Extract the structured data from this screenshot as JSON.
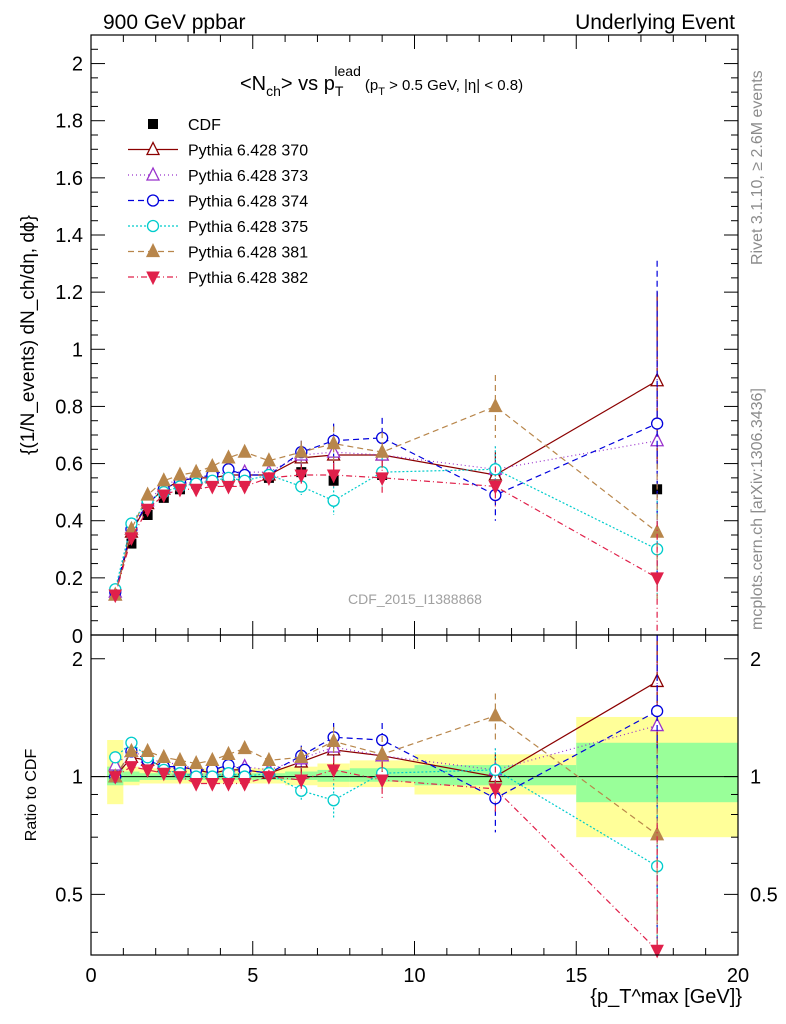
{
  "header": {
    "left": "900 GeV ppbar",
    "right": "Underlying Event",
    "plot_title_main": "<N",
    "plot_title_sub": "ch",
    "plot_title_vs": "> vs p",
    "plot_title_T": "T",
    "plot_title_lead": "lead",
    "plot_title_cut": "(p",
    "plot_title_cut_T": "T",
    "plot_title_cut_rest": " > 0.5 GeV, |η| < 0.8)"
  },
  "side_labels": {
    "rivet": "Rivet 3.1.10, ≥ 2.6M events",
    "mcplots": "mcplots.cern.ch [arXiv:1306.3436]"
  },
  "watermark": "CDF_2015_I1388868",
  "ylabel_main": "{(1/N_events) dN_ch/dη, dϕ}",
  "ylabel_ratio": "Ratio to CDF",
  "xlabel": "{p_T^max [GeV]}",
  "chart_data": [
    {
      "type": "line",
      "panel": "main",
      "xlim": [
        0,
        20
      ],
      "ylim": [
        0,
        2.1
      ],
      "xticks": [
        0,
        5,
        10,
        15,
        20
      ],
      "yticks": [
        0.2,
        0.4,
        0.6,
        0.8,
        1,
        1.2,
        1.4,
        1.6,
        1.8,
        2
      ],
      "ytick_labels": [
        "0.2",
        "0.4",
        "0.6",
        "0.8",
        "1",
        "1.2",
        "1.4",
        "1.6",
        "1.8",
        "2"
      ],
      "legend_position": "top-left",
      "x": [
        0.75,
        1.25,
        1.75,
        2.25,
        2.75,
        3.25,
        3.75,
        4.25,
        4.75,
        5.5,
        6.5,
        7.5,
        9.0,
        12.5,
        17.5
      ],
      "series": [
        {
          "name": "CDF",
          "color": "#000000",
          "marker": "square",
          "dash": "none",
          "values": [
            0.14,
            0.32,
            0.42,
            0.48,
            0.51,
            0.53,
            0.54,
            0.54,
            0.54,
            0.55,
            0.57,
            0.54,
            0.56,
            0.56,
            0.51
          ],
          "errors": [
            0.01,
            0.01,
            0.01,
            0.01,
            0.01,
            0.01,
            0.01,
            0.01,
            0.01,
            0.01,
            0.01,
            0.01,
            0.015,
            0.02,
            0.03
          ]
        },
        {
          "name": "Pythia 6.428 370",
          "color": "#8b0000",
          "marker": "triangle-open",
          "dash": "none",
          "values": [
            0.14,
            0.36,
            0.46,
            0.51,
            0.54,
            0.55,
            0.55,
            0.56,
            0.56,
            0.56,
            0.62,
            0.63,
            0.63,
            0.56,
            0.89
          ],
          "errors": [
            0.005,
            0.01,
            0.01,
            0.01,
            0.01,
            0.01,
            0.015,
            0.015,
            0.015,
            0.02,
            0.04,
            0.06,
            0.08,
            0.08,
            0.31
          ]
        },
        {
          "name": "Pythia 6.428 373",
          "color": "#9932cc",
          "marker": "triangle-open",
          "dash": "1,3",
          "values": [
            0.15,
            0.37,
            0.47,
            0.52,
            0.55,
            0.55,
            0.56,
            0.57,
            0.57,
            0.57,
            0.63,
            0.64,
            0.63,
            0.58,
            0.68
          ],
          "errors": [
            0.005,
            0.01,
            0.01,
            0.01,
            0.01,
            0.01,
            0.015,
            0.015,
            0.015,
            0.02,
            0.04,
            0.06,
            0.08,
            0.08,
            0.3
          ]
        },
        {
          "name": "Pythia 6.428 374",
          "color": "#0000dd",
          "marker": "circle-open",
          "dash": "6,4",
          "values": [
            0.15,
            0.37,
            0.46,
            0.51,
            0.54,
            0.55,
            0.56,
            0.58,
            0.56,
            0.56,
            0.64,
            0.68,
            0.69,
            0.49,
            0.74
          ],
          "errors": [
            0.005,
            0.01,
            0.01,
            0.01,
            0.01,
            0.01,
            0.015,
            0.015,
            0.015,
            0.02,
            0.04,
            0.06,
            0.07,
            0.09,
            0.57
          ]
        },
        {
          "name": "Pythia 6.428 375",
          "color": "#00cccc",
          "marker": "circle-open",
          "dash": "2,2",
          "values": [
            0.16,
            0.39,
            0.47,
            0.5,
            0.52,
            0.53,
            0.54,
            0.55,
            0.54,
            0.56,
            0.52,
            0.47,
            0.57,
            0.58,
            0.3
          ],
          "errors": [
            0.005,
            0.01,
            0.01,
            0.01,
            0.01,
            0.01,
            0.015,
            0.015,
            0.015,
            0.02,
            0.03,
            0.05,
            0.05,
            0.08,
            0.17
          ]
        },
        {
          "name": "Pythia 6.428 381",
          "color": "#b8864b",
          "marker": "triangle-filled",
          "dash": "6,4",
          "values": [
            0.14,
            0.37,
            0.49,
            0.54,
            0.56,
            0.57,
            0.59,
            0.62,
            0.64,
            0.61,
            0.64,
            0.67,
            0.64,
            0.8,
            0.36
          ],
          "errors": [
            0.005,
            0.01,
            0.01,
            0.01,
            0.01,
            0.01,
            0.015,
            0.015,
            0.015,
            0.02,
            0.04,
            0.06,
            0.07,
            0.11,
            0.24
          ]
        },
        {
          "name": "Pythia 6.428 382",
          "color": "#e0204a",
          "marker": "triangle-down-filled",
          "dash": "6,3,1,3",
          "values": [
            0.14,
            0.34,
            0.44,
            0.49,
            0.51,
            0.51,
            0.52,
            0.52,
            0.52,
            0.55,
            0.56,
            0.56,
            0.55,
            0.52,
            0.2
          ],
          "errors": [
            0.005,
            0.01,
            0.01,
            0.01,
            0.01,
            0.01,
            0.015,
            0.015,
            0.015,
            0.02,
            0.03,
            0.04,
            0.06,
            0.07,
            0.2
          ]
        }
      ]
    },
    {
      "type": "line",
      "panel": "ratio",
      "ylabel": "Ratio to CDF",
      "xlim": [
        0,
        20
      ],
      "ylim": [
        0.35,
        2.3
      ],
      "log_y": true,
      "yticks": [
        0.5,
        1,
        2
      ],
      "ytick_labels": [
        "0.5",
        "1",
        "2"
      ],
      "x": [
        0.75,
        1.25,
        1.75,
        2.25,
        2.75,
        3.25,
        3.75,
        4.25,
        4.75,
        5.5,
        6.5,
        7.5,
        9.0,
        12.5,
        17.5
      ],
      "bands": [
        {
          "x0": 0.5,
          "x1": 1.0,
          "yellow": [
            0.85,
            1.24
          ],
          "green": [
            0.95,
            1.06
          ]
        },
        {
          "x0": 1.0,
          "x1": 1.5,
          "yellow": [
            0.95,
            1.06
          ],
          "green": [
            0.97,
            1.03
          ]
        },
        {
          "x0": 1.5,
          "x1": 5.0,
          "yellow": [
            0.96,
            1.05
          ],
          "green": [
            0.98,
            1.02
          ]
        },
        {
          "x0": 5.0,
          "x1": 6.0,
          "yellow": [
            0.96,
            1.05
          ],
          "green": [
            0.98,
            1.02
          ]
        },
        {
          "x0": 6.0,
          "x1": 7.0,
          "yellow": [
            0.95,
            1.06
          ],
          "green": [
            0.98,
            1.03
          ]
        },
        {
          "x0": 7.0,
          "x1": 8.0,
          "yellow": [
            0.94,
            1.08
          ],
          "green": [
            0.97,
            1.04
          ]
        },
        {
          "x0": 8.0,
          "x1": 10.0,
          "yellow": [
            0.94,
            1.1
          ],
          "green": [
            0.97,
            1.05
          ]
        },
        {
          "x0": 10.0,
          "x1": 15.0,
          "yellow": [
            0.9,
            1.14
          ],
          "green": [
            0.95,
            1.07
          ]
        },
        {
          "x0": 15.0,
          "x1": 20.0,
          "yellow": [
            0.7,
            1.42
          ],
          "green": [
            0.86,
            1.22
          ]
        }
      ],
      "series": [
        {
          "name": "Pythia 6.428 370",
          "color": "#8b0000",
          "marker": "triangle-open",
          "dash": "none",
          "values": [
            1.0,
            1.12,
            1.1,
            1.06,
            1.06,
            1.04,
            1.02,
            1.04,
            1.04,
            1.02,
            1.09,
            1.17,
            1.13,
            1.0,
            1.75
          ],
          "errors": [
            0.02,
            0.03,
            0.03,
            0.03,
            0.03,
            0.03,
            0.03,
            0.03,
            0.03,
            0.04,
            0.07,
            0.11,
            0.14,
            0.14,
            0.6
          ]
        },
        {
          "name": "Pythia 6.428 373",
          "color": "#9932cc",
          "marker": "triangle-open",
          "dash": "1,3",
          "values": [
            1.07,
            1.16,
            1.12,
            1.08,
            1.08,
            1.04,
            1.04,
            1.06,
            1.06,
            1.04,
            1.11,
            1.19,
            1.13,
            1.04,
            1.35
          ],
          "errors": [
            0.02,
            0.03,
            0.03,
            0.03,
            0.03,
            0.03,
            0.03,
            0.03,
            0.03,
            0.04,
            0.07,
            0.11,
            0.14,
            0.14,
            0.6
          ]
        },
        {
          "name": "Pythia 6.428 374",
          "color": "#0000dd",
          "marker": "circle-open",
          "dash": "6,4",
          "values": [
            1.0,
            1.16,
            1.1,
            1.06,
            1.06,
            1.04,
            1.04,
            1.07,
            1.04,
            1.02,
            1.13,
            1.26,
            1.24,
            0.88,
            1.47
          ],
          "errors": [
            0.02,
            0.03,
            0.03,
            0.03,
            0.03,
            0.03,
            0.03,
            0.03,
            0.03,
            0.04,
            0.07,
            0.11,
            0.13,
            0.16,
            1.12
          ]
        },
        {
          "name": "Pythia 6.428 375",
          "color": "#00cccc",
          "marker": "circle-open",
          "dash": "2,2",
          "values": [
            1.12,
            1.22,
            1.12,
            1.04,
            1.02,
            1.0,
            1.0,
            1.02,
            1.0,
            1.02,
            0.92,
            0.87,
            1.02,
            1.04,
            0.59
          ],
          "errors": [
            0.02,
            0.03,
            0.03,
            0.03,
            0.03,
            0.03,
            0.03,
            0.03,
            0.03,
            0.04,
            0.05,
            0.09,
            0.09,
            0.14,
            0.33
          ]
        },
        {
          "name": "Pythia 6.428 381",
          "color": "#b8864b",
          "marker": "triangle-filled",
          "dash": "6,4",
          "values": [
            1.0,
            1.16,
            1.16,
            1.12,
            1.1,
            1.08,
            1.1,
            1.14,
            1.18,
            1.1,
            1.12,
            1.23,
            1.14,
            1.43,
            0.71
          ],
          "errors": [
            0.02,
            0.03,
            0.03,
            0.03,
            0.03,
            0.03,
            0.03,
            0.03,
            0.03,
            0.04,
            0.07,
            0.11,
            0.13,
            0.2,
            0.47
          ]
        },
        {
          "name": "Pythia 6.428 382",
          "color": "#e0204a",
          "marker": "triangle-down-filled",
          "dash": "6,3,1,3",
          "values": [
            1.0,
            1.06,
            1.04,
            1.02,
            1.0,
            0.96,
            0.96,
            0.96,
            0.96,
            1.0,
            0.98,
            1.04,
            0.98,
            0.93,
            0.36
          ],
          "errors": [
            0.02,
            0.03,
            0.03,
            0.03,
            0.03,
            0.03,
            0.03,
            0.03,
            0.03,
            0.04,
            0.05,
            0.08,
            0.11,
            0.13,
            0.4
          ]
        }
      ]
    }
  ]
}
